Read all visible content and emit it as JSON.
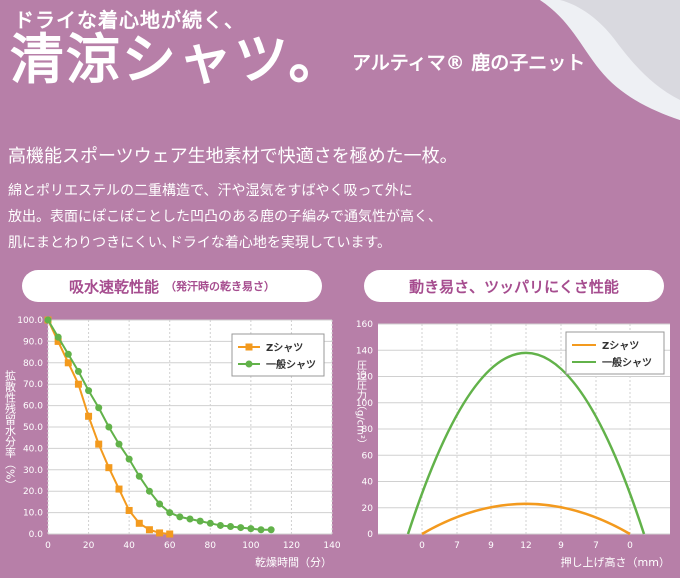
{
  "header": {
    "tagline": "ドライな着心地が続く、",
    "title": "清涼シャツ。",
    "product": "アルティマ® 鹿の子ニット",
    "subtitle": "高機能スポーツウェア生地素材で快適さを極めた一枚。",
    "body": [
      "綿とポリエステルの二重構造で、汗や湿気をすばやく吸って外に",
      "放出。表面にぽこぽことした凹凸のある鹿の子編みで通気性が高く、",
      "肌にまとわりつきにくい､ドライな着心地を実現しています。"
    ]
  },
  "colors": {
    "background": "#b77fa8",
    "accent": "#a64d8f",
    "z_series": "#f39a1e",
    "general_series": "#62b24a"
  },
  "chart_data": [
    {
      "type": "line",
      "title": "吸水速乾性能",
      "subtitle": "（発汗時の乾き易さ）",
      "xlabel": "乾燥時間（分）",
      "ylabel": "拡散性残留水分率（%）",
      "xlim": [
        0,
        140
      ],
      "ylim": [
        0,
        100
      ],
      "xticks": [
        "0",
        "20",
        "40",
        "60",
        "80",
        "100",
        "120",
        "140"
      ],
      "yticks": [
        "0.0",
        "10.0",
        "20.0",
        "30.0",
        "40.0",
        "50.0",
        "60.0",
        "70.0",
        "80.0",
        "90.0",
        "100.0"
      ],
      "legend_position": "top-right",
      "series": [
        {
          "name": "Zシャツ",
          "color": "#f39a1e",
          "marker": "square",
          "x": [
            0,
            5,
            10,
            15,
            20,
            25,
            30,
            35,
            40,
            45,
            50,
            55,
            60
          ],
          "y": [
            100,
            90,
            80,
            70,
            55,
            42,
            31,
            21,
            11,
            5,
            2,
            0.5,
            0
          ]
        },
        {
          "name": "一般シャツ",
          "color": "#62b24a",
          "marker": "circle",
          "x": [
            0,
            5,
            10,
            15,
            20,
            25,
            30,
            35,
            40,
            45,
            50,
            55,
            60,
            65,
            70,
            75,
            80,
            85,
            90,
            95,
            100,
            105,
            110
          ],
          "y": [
            100,
            92,
            84,
            76,
            67,
            59,
            50,
            42,
            35,
            27,
            20,
            14,
            10,
            8,
            7,
            6,
            5,
            4,
            3.5,
            3,
            2.5,
            2,
            2
          ]
        }
      ]
    },
    {
      "type": "line",
      "title": "動き易さ、ツッパリにくさ性能",
      "xlabel": "押し上げ高さ（mm）",
      "ylabel": "圧迫圧力（g/cm²）",
      "ylim": [
        0,
        160
      ],
      "yticks": [
        "0",
        "20",
        "40",
        "60",
        "80",
        "100",
        "120",
        "140",
        "160"
      ],
      "xticks": [
        "0",
        "7",
        "9",
        "12",
        "9",
        "7",
        "0"
      ],
      "legend_position": "top-right",
      "series": [
        {
          "name": "Zシャツ",
          "color": "#f39a1e",
          "peak": 23
        },
        {
          "name": "一般シャツ",
          "color": "#62b24a",
          "peak": 138
        }
      ]
    }
  ]
}
